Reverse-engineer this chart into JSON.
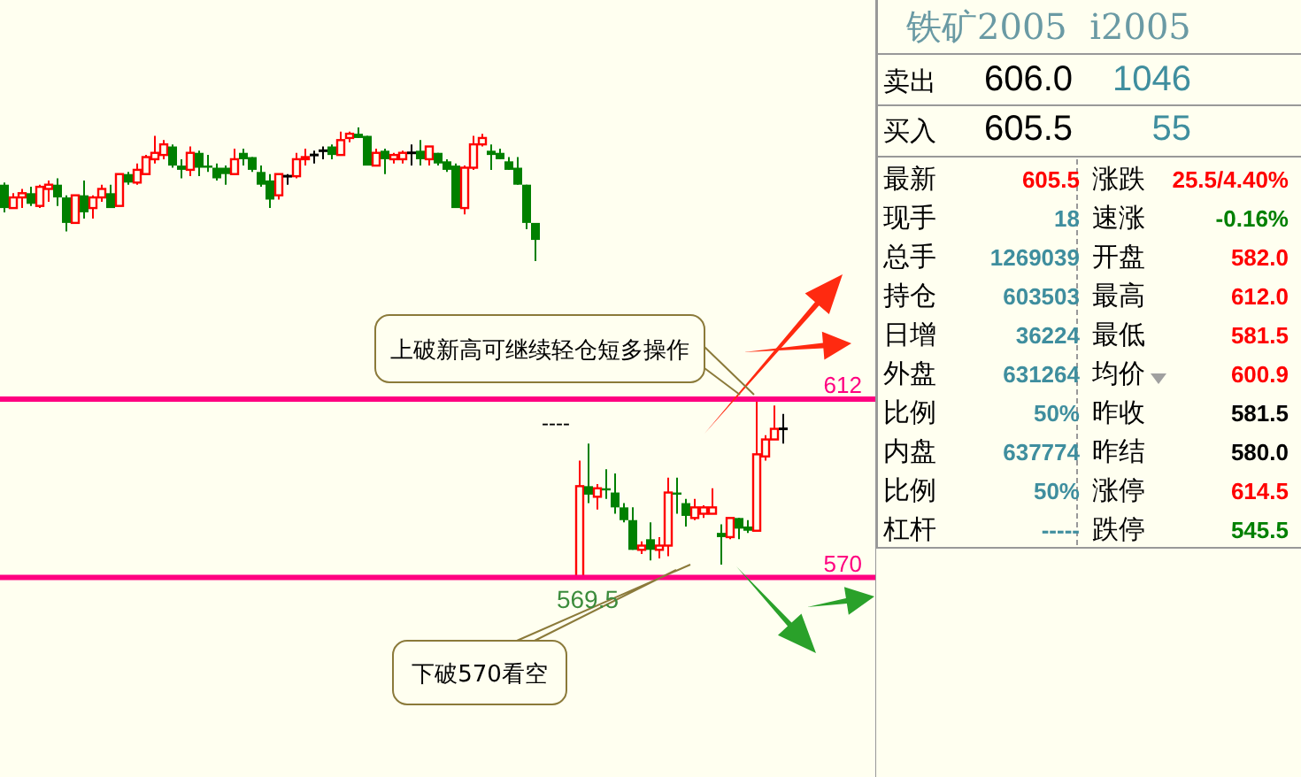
{
  "chart_data": [
    {
      "type": "candlestick",
      "tick_labels": "y",
      "ylim": [
        523,
        706
      ],
      "yticks": [
        612,
        570
      ],
      "categories": [
        null,
        null,
        null,
        null,
        null,
        null,
        null,
        null,
        null,
        null,
        null,
        null,
        null,
        null,
        null,
        null,
        null,
        null,
        null,
        null,
        null,
        null,
        null,
        null,
        null,
        null,
        null,
        null,
        null,
        null,
        null,
        null,
        null,
        null,
        null,
        null,
        null,
        null,
        null,
        null,
        null,
        null,
        null,
        null,
        null,
        null,
        null,
        null,
        null,
        null,
        null,
        null,
        null,
        null,
        null,
        null,
        null,
        null,
        null,
        null,
        null,
        null,
        null,
        null,
        null,
        null,
        null,
        null,
        null,
        null,
        null,
        null,
        null,
        null,
        null,
        null,
        null,
        null,
        null,
        null,
        null,
        null,
        null,
        null,
        null,
        null,
        null,
        null,
        null,
        null,
        null,
        null,
        null,
        null,
        null,
        null,
        null,
        null,
        null
      ],
      "ohlc": [
        [
          662.5,
          663,
          656,
          657
        ],
        [
          657,
          660.5,
          657,
          659.5
        ],
        [
          659.5,
          661.5,
          657,
          660.5
        ],
        [
          660.5,
          662,
          657.5,
          658
        ],
        [
          657.5,
          662.5,
          657,
          662
        ],
        [
          661.5,
          663.5,
          658.5,
          662.5
        ],
        [
          662.5,
          664,
          657.5,
          659.5
        ],
        [
          659.5,
          660,
          651.5,
          653.5
        ],
        [
          653.5,
          660,
          653.5,
          660
        ],
        [
          660,
          663.5,
          654.5,
          656
        ],
        [
          657,
          660,
          654.5,
          659.5
        ],
        [
          659.5,
          662.5,
          658.5,
          661.5
        ],
        [
          660.5,
          662.5,
          657,
          657
        ],
        [
          657.5,
          665,
          657.5,
          665
        ],
        [
          665,
          665.5,
          662.5,
          663
        ],
        [
          663,
          667.5,
          662.5,
          666
        ],
        [
          665,
          669.5,
          665,
          669
        ],
        [
          668.5,
          674,
          667.5,
          670
        ],
        [
          669.5,
          673,
          668.5,
          672
        ],
        [
          671.5,
          672,
          666.5,
          667
        ],
        [
          667,
          668.5,
          664,
          666
        ],
        [
          666,
          671.5,
          664.5,
          670
        ],
        [
          670,
          670.5,
          664.5,
          666.5
        ],
        [
          667,
          669.5,
          665.5,
          666.5
        ],
        [
          666.5,
          667.5,
          663.5,
          664
        ],
        [
          666.5,
          667,
          662.5,
          665
        ],
        [
          665,
          671,
          665,
          668.5
        ],
        [
          670,
          671,
          667,
          668.5
        ],
        [
          669,
          669,
          665.5,
          666
        ],
        [
          665.5,
          667,
          662,
          662.5
        ],
        [
          663.5,
          665,
          657,
          659
        ],
        [
          660,
          665,
          659,
          665
        ],
        [
          664.5,
          665,
          662.5,
          664.5
        ],
        [
          664.5,
          670,
          664,
          668.5
        ],
        [
          668.5,
          671,
          667,
          669
        ],
        [
          669.5,
          670.5,
          667.5,
          669.5
        ],
        [
          670.5,
          671.5,
          668.5,
          670.5
        ],
        [
          671.5,
          672,
          668.5,
          669.5
        ],
        [
          669.5,
          675,
          669.5,
          673
        ],
        [
          673.5,
          675,
          672.5,
          674.5
        ],
        [
          674.5,
          676,
          673.5,
          673.5
        ],
        [
          674,
          674,
          667,
          667
        ],
        [
          667,
          671,
          667,
          670
        ],
        [
          670.5,
          671,
          665,
          668.5
        ],
        [
          668.5,
          670,
          667.5,
          669.5
        ],
        [
          668.5,
          670.5,
          667.5,
          670
        ],
        [
          670,
          672,
          667,
          670
        ],
        [
          670.5,
          673,
          667,
          668.5
        ],
        [
          668.5,
          671.5,
          667,
          671.5
        ],
        [
          670,
          670,
          667,
          667.5
        ],
        [
          668,
          668.5,
          665.5,
          666
        ],
        [
          667,
          667.5,
          657,
          657
        ],
        [
          657,
          667,
          655.5,
          666.5
        ],
        [
          666.5,
          674,
          666,
          672
        ],
        [
          672,
          674.5,
          671.5,
          673.5
        ],
        [
          670.5,
          672,
          666,
          669.5
        ],
        [
          670,
          671,
          668.5,
          668.5
        ],
        [
          668,
          669,
          666,
          666
        ],
        [
          666.5,
          669,
          662.5,
          662.5
        ],
        [
          662.5,
          662.5,
          652,
          653.5
        ],
        [
          653.5,
          653.5,
          644.5,
          649.5
        ],
        null,
        null,
        null,
        null,
        [
          570,
          597.5,
          569.5,
          591.5
        ],
        [
          591.5,
          601.5,
          587.5,
          589.5
        ],
        [
          589,
          592,
          586,
          591
        ],
        [
          591,
          595.5,
          588.5,
          590.5
        ],
        [
          590,
          594.5,
          585,
          586.5
        ],
        [
          586.5,
          587.5,
          583,
          583.5
        ],
        [
          583.5,
          586.5,
          576.5,
          576.5
        ],
        [
          576.5,
          578.5,
          575.5,
          577.5
        ],
        [
          579,
          583,
          574,
          576.5
        ],
        [
          576.5,
          579.5,
          574.5,
          577.5
        ],
        [
          577.5,
          593.5,
          575,
          590
        ],
        [
          590,
          593.5,
          585,
          589.5
        ],
        [
          587.5,
          588.5,
          582,
          584.5
        ],
        [
          584,
          588.5,
          583.5,
          586.5
        ],
        [
          585,
          587,
          584,
          586.5
        ],
        [
          585,
          591,
          585,
          586.5
        ],
        [
          580.5,
          582.5,
          573,
          579.5
        ],
        [
          579.5,
          584,
          579,
          584
        ],
        [
          584,
          584,
          579,
          581.5
        ],
        [
          582,
          583.5,
          580.5,
          581
        ],
        [
          581,
          612,
          581,
          599
        ],
        [
          598.5,
          603.5,
          597.5,
          602.5
        ],
        [
          602.5,
          610.5,
          602.5,
          605
        ],
        [
          605,
          608.5,
          601.5,
          605
        ],
        null,
        null,
        null,
        null,
        null,
        null,
        null,
        null,
        null,
        null
      ],
      "colors": [
        "#008000",
        "#ff0000",
        "#ff0000",
        "#008000",
        "#ff0000",
        "#ff0000",
        "#008000",
        "#008000",
        "#ff0000",
        "#008000",
        "#ff0000",
        "#ff0000",
        "#008000",
        "#ff0000",
        "#008000",
        "#ff0000",
        "#ff0000",
        "#ff0000",
        "#ff0000",
        "#008000",
        "#008000",
        "#ff0000",
        "#008000",
        "#008000",
        "#008000",
        "#008000",
        "#ff0000",
        "#008000",
        "#008000",
        "#008000",
        "#008000",
        "#ff0000",
        "#000000",
        "#ff0000",
        "#ff0000",
        "#000000",
        "#000000",
        "#008000",
        "#ff0000",
        "#ff0000",
        "#008000",
        "#008000",
        "#ff0000",
        "#008000",
        "#ff0000",
        "#ff0000",
        "#000000",
        "#008000",
        "#ff0000",
        "#008000",
        "#008000",
        "#008000",
        "#ff0000",
        "#ff0000",
        "#ff0000",
        "#008000",
        "#008000",
        "#008000",
        "#008000",
        "#008000",
        "#008000",
        null,
        null,
        null,
        null,
        "#ff0000",
        "#008000",
        "#ff0000",
        "#008000",
        "#008000",
        "#008000",
        "#008000",
        "#ff0000",
        "#008000",
        "#ff0000",
        "#ff0000",
        "#008000",
        "#008000",
        "#ff0000",
        "#ff0000",
        "#ff0000",
        "#008000",
        "#ff0000",
        "#008000",
        "#008000",
        "#ff0000",
        "#ff0000",
        "#ff0000",
        "#000000",
        null,
        null,
        null,
        null,
        null,
        null,
        null,
        null,
        null,
        null
      ],
      "ref_lines": [
        {
          "axis": "y",
          "value": 612,
          "color": "#ff0080"
        },
        {
          "axis": "y",
          "value": 570,
          "color": "#ff0080"
        }
      ],
      "annotations": [
        "上破新高可继续轻仓短多操作",
        "下破570看空",
        {
          "text": "569.5",
          "y": 569.5
        },
        "----"
      ]
    },
    {
      "type": "other",
      "title": "铁矿2005  i2005",
      "annotations": [
        "卖出",
        "606.0",
        "1046",
        "买入",
        "605.5",
        "55",
        "最新",
        "605.5",
        "涨跌",
        "25.5/4.40%",
        "现手",
        "18",
        "速涨",
        "-0.16%",
        "总手",
        "1269039",
        "开盘",
        "582.0",
        "持仓",
        "603503",
        "最高",
        "612.0",
        "日增",
        "36224",
        "最低",
        "581.5",
        "外盘",
        "631264",
        "均价",
        "600.9",
        "比例",
        "50%",
        "昨收",
        "581.5",
        "内盘",
        "637774",
        "昨结",
        "580.0",
        "比例",
        "50%",
        "涨停",
        "614.5",
        "杠杆",
        "-----",
        "跌停",
        "545.5"
      ]
    }
  ]
}
